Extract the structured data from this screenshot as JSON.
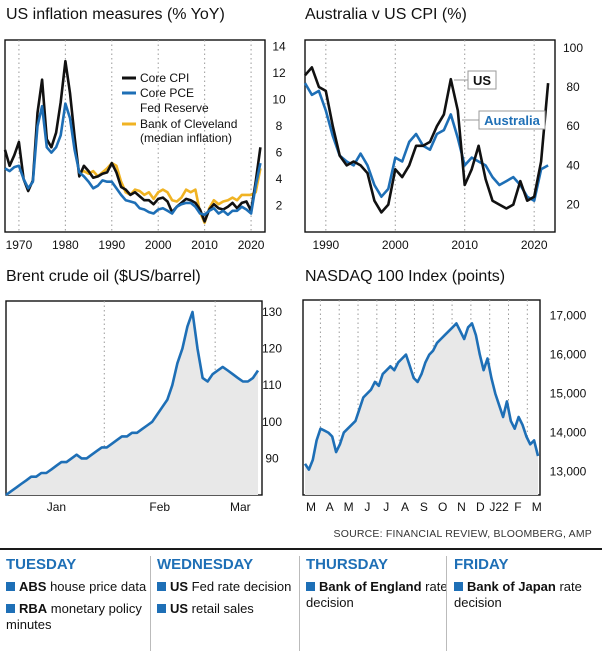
{
  "colors": {
    "blue": "#1e6fb6",
    "black": "#111111",
    "gold": "#f0b323",
    "fill": "#e8e8e8",
    "dotted": "#9a9a9a"
  },
  "chart_data": [
    {
      "type": "line",
      "title": "US inflation measures (% YoY)",
      "x_ticks": [
        "1970",
        "1980",
        "1990",
        "2000",
        "2010",
        "2020"
      ],
      "y_ticks": [
        "14",
        "12",
        "10",
        "8",
        "6",
        "4",
        "2"
      ],
      "xlim": [
        1967,
        2023
      ],
      "ylim": [
        0,
        14.5
      ],
      "legend": [
        "Core CPI",
        "Core PCE",
        "Fed Reserve",
        "Bank of Cleveland",
        "(median inflation)"
      ],
      "series": [
        {
          "name": "Core CPI",
          "color": "#111111",
          "x": [
            1967,
            1968,
            1969,
            1970,
            1971,
            1972,
            1973,
            1974,
            1975,
            1976,
            1977,
            1978,
            1979,
            1980,
            1981,
            1982,
            1983,
            1984,
            1985,
            1986,
            1987,
            1988,
            1989,
            1990,
            1991,
            1992,
            1993,
            1994,
            1995,
            1996,
            1997,
            1998,
            1999,
            2000,
            2001,
            2002,
            2003,
            2004,
            2005,
            2006,
            2007,
            2008,
            2009,
            2010,
            2011,
            2012,
            2013,
            2014,
            2015,
            2016,
            2017,
            2018,
            2019,
            2020,
            2021,
            2022
          ],
          "y": [
            6.2,
            5.0,
            5.8,
            6.8,
            4.0,
            3.1,
            3.9,
            9.0,
            11.5,
            7.0,
            6.4,
            7.5,
            9.8,
            12.9,
            10.5,
            7.2,
            4.2,
            5.0,
            4.6,
            4.1,
            4.2,
            4.4,
            4.5,
            5.2,
            4.5,
            3.4,
            3.2,
            2.8,
            3.0,
            2.7,
            2.4,
            2.4,
            2.1,
            2.5,
            2.6,
            2.3,
            1.5,
            1.9,
            2.2,
            2.5,
            2.4,
            2.2,
            1.7,
            0.8,
            1.7,
            2.1,
            1.8,
            1.7,
            1.9,
            2.2,
            1.8,
            2.2,
            2.3,
            1.6,
            3.8,
            6.4
          ]
        },
        {
          "name": "Core PCE",
          "color": "#1e6fb6",
          "x": [
            1967,
            1968,
            1969,
            1970,
            1971,
            1972,
            1973,
            1974,
            1975,
            1976,
            1977,
            1978,
            1979,
            1980,
            1981,
            1982,
            1983,
            1984,
            1985,
            1986,
            1987,
            1988,
            1989,
            1990,
            1991,
            1992,
            1993,
            1994,
            1995,
            1996,
            1997,
            1998,
            1999,
            2000,
            2001,
            2002,
            2003,
            2004,
            2005,
            2006,
            2007,
            2008,
            2009,
            2010,
            2011,
            2012,
            2013,
            2014,
            2015,
            2016,
            2017,
            2018,
            2019,
            2020,
            2021,
            2022
          ],
          "y": [
            4.8,
            4.6,
            4.9,
            5.0,
            4.0,
            3.3,
            3.8,
            8.0,
            9.5,
            6.4,
            6.0,
            6.4,
            7.3,
            9.7,
            8.6,
            6.2,
            4.5,
            4.2,
            3.8,
            3.3,
            3.5,
            3.9,
            3.8,
            3.8,
            3.3,
            2.8,
            2.4,
            2.3,
            2.2,
            1.8,
            1.7,
            1.5,
            1.4,
            1.7,
            1.8,
            1.6,
            1.4,
            1.9,
            2.1,
            2.2,
            2.2,
            1.9,
            1.4,
            1.3,
            1.6,
            1.8,
            1.4,
            1.6,
            1.3,
            1.6,
            1.6,
            1.9,
            1.7,
            1.4,
            3.5,
            5.2
          ]
        },
        {
          "name": "Bank of Cleveland (median inflation)",
          "color": "#f0b323",
          "x": [
            1983,
            1984,
            1985,
            1986,
            1987,
            1988,
            1989,
            1990,
            1991,
            1992,
            1993,
            1994,
            1995,
            1996,
            1997,
            1998,
            1999,
            2000,
            2001,
            2002,
            2003,
            2004,
            2005,
            2006,
            2007,
            2008,
            2009,
            2010,
            2011,
            2012,
            2013,
            2014,
            2015,
            2016,
            2017,
            2018,
            2019,
            2020,
            2021,
            2022
          ],
          "y": [
            4.5,
            4.6,
            4.4,
            4.6,
            4.2,
            4.5,
            4.8,
            5.2,
            5.0,
            3.8,
            3.0,
            2.8,
            3.2,
            3.1,
            2.8,
            3.0,
            2.5,
            3.0,
            3.2,
            3.0,
            2.4,
            2.3,
            2.6,
            3.2,
            3.0,
            3.2,
            1.5,
            0.7,
            1.8,
            2.4,
            2.1,
            2.3,
            2.4,
            2.6,
            2.4,
            2.8,
            2.8,
            2.8,
            3.0,
            4.8
          ]
        }
      ]
    },
    {
      "type": "line",
      "title": "Australia v US CPI (%)",
      "x_ticks": [
        "1990",
        "2000",
        "2010",
        "2020"
      ],
      "y_ticks": [
        "100",
        "80",
        "60",
        "40",
        "20"
      ],
      "xlim": [
        1987,
        2023
      ],
      "ylim": [
        6,
        104
      ],
      "labels": [
        "US",
        "Australia"
      ],
      "series": [
        {
          "name": "US",
          "color": "#111111",
          "x": [
            1987,
            1988,
            1989,
            1990,
            1991,
            1992,
            1993,
            1994,
            1995,
            1996,
            1997,
            1998,
            1999,
            2000,
            2001,
            2002,
            2003,
            2004,
            2005,
            2006,
            2007,
            2008,
            2009,
            2010,
            2011,
            2012,
            2013,
            2014,
            2015,
            2016,
            2017,
            2018,
            2019,
            2020,
            2021,
            2022
          ],
          "y": [
            86,
            90,
            80,
            78,
            60,
            45,
            40,
            42,
            40,
            36,
            22,
            16,
            20,
            38,
            34,
            40,
            50,
            50,
            52,
            60,
            66,
            84,
            68,
            30,
            38,
            50,
            33,
            22,
            20,
            18,
            20,
            32,
            22,
            24,
            42,
            82
          ]
        },
        {
          "name": "Australia",
          "color": "#1e6fb6",
          "x": [
            1987,
            1988,
            1989,
            1990,
            1991,
            1992,
            1993,
            1994,
            1995,
            1996,
            1997,
            1998,
            1999,
            2000,
            2001,
            2002,
            2003,
            2004,
            2005,
            2006,
            2007,
            2008,
            2009,
            2010,
            2011,
            2012,
            2013,
            2014,
            2015,
            2016,
            2017,
            2018,
            2019,
            2020,
            2021,
            2022
          ],
          "y": [
            82,
            76,
            78,
            68,
            55,
            45,
            42,
            40,
            46,
            40,
            30,
            24,
            28,
            44,
            42,
            52,
            56,
            50,
            48,
            56,
            58,
            66,
            54,
            40,
            44,
            42,
            40,
            34,
            30,
            32,
            34,
            30,
            24,
            22,
            38,
            40
          ]
        }
      ]
    },
    {
      "type": "area",
      "title": "Brent crude oil ($US/barrel)",
      "x_ticks": [
        "Jan",
        "Feb",
        "Mar"
      ],
      "y_ticks": [
        "130",
        "120",
        "110",
        "100",
        "90"
      ],
      "ylim": [
        80,
        133
      ],
      "x": [
        0,
        2,
        4,
        6,
        8,
        10,
        12,
        14,
        16,
        18,
        20,
        22,
        24,
        26,
        28,
        30,
        32,
        34,
        36,
        38,
        40,
        42,
        44,
        46,
        48,
        50,
        52,
        54,
        56,
        58,
        60,
        62,
        64,
        66,
        68,
        70,
        72,
        74,
        76,
        78,
        80,
        82,
        84,
        86,
        88,
        90,
        92,
        94,
        96,
        98,
        100
      ],
      "y": [
        80,
        81,
        82,
        83,
        84,
        85,
        85,
        86,
        86,
        87,
        88,
        89,
        89,
        90,
        91,
        90,
        90,
        91,
        92,
        93,
        93,
        94,
        95,
        96,
        96,
        97,
        97,
        98,
        99,
        100,
        102,
        104,
        106,
        110,
        116,
        120,
        126,
        130,
        120,
        112,
        111,
        113,
        114,
        115,
        114,
        113,
        112,
        111,
        111,
        112,
        114
      ],
      "series": [
        {
          "color": "#1e6fb6"
        }
      ]
    },
    {
      "type": "area",
      "title": "NASDAQ 100 Index (points)",
      "x_ticks": [
        "M",
        "A",
        "M",
        "J",
        "J",
        "A",
        "S",
        "O",
        "N",
        "D",
        "J22",
        "F",
        "M"
      ],
      "y_ticks": [
        "17,000",
        "16,000",
        "15,000",
        "14,000",
        "13,000"
      ],
      "ylim": [
        12400,
        17400
      ],
      "x": [
        0,
        1,
        2,
        3,
        4,
        5,
        6,
        7,
        8,
        9,
        10,
        11,
        12,
        13,
        14,
        15,
        16,
        17,
        18,
        19,
        20,
        21,
        22,
        23,
        24,
        25,
        26,
        27,
        28,
        29,
        30,
        31,
        32,
        33,
        34,
        35,
        36,
        37,
        38,
        39,
        40,
        41,
        42,
        43,
        44,
        45,
        46,
        47,
        48,
        49,
        50,
        51,
        52,
        53,
        54,
        55,
        56,
        57,
        58,
        59,
        60
      ],
      "y": [
        13200,
        13050,
        13300,
        13800,
        14100,
        14050,
        14000,
        13900,
        13500,
        13700,
        14000,
        14100,
        14200,
        14300,
        14600,
        14900,
        15000,
        15100,
        15300,
        15200,
        15500,
        15600,
        15700,
        15600,
        15800,
        15900,
        16000,
        15700,
        15400,
        15300,
        15500,
        15800,
        16000,
        16100,
        16300,
        16400,
        16500,
        16600,
        16700,
        16800,
        16600,
        16400,
        16700,
        16800,
        16500,
        16000,
        15600,
        15900,
        15400,
        15000,
        14700,
        14400,
        14800,
        14300,
        14100,
        14400,
        14200,
        13900,
        13700,
        13800,
        13400
      ],
      "series": [
        {
          "color": "#1e6fb6"
        }
      ]
    }
  ],
  "source": "SOURCE: FINANCIAL REVIEW, BLOOMBERG, AMP",
  "calendar": [
    {
      "day": "TUESDAY",
      "items": [
        {
          "bold": "ABS",
          "text": " house price data"
        },
        {
          "bold": "RBA",
          "text": " monetary policy minutes"
        }
      ]
    },
    {
      "day": "WEDNESDAY",
      "items": [
        {
          "bold": "US",
          "text": " Fed rate decision"
        },
        {
          "bold": "US",
          "text": " retail sales"
        }
      ]
    },
    {
      "day": "THURSDAY",
      "items": [
        {
          "bold": "Bank of England",
          "text": " rate decision"
        }
      ]
    },
    {
      "day": "FRIDAY",
      "items": [
        {
          "bold": "Bank of Japan",
          "text": " rate decision"
        }
      ]
    }
  ]
}
